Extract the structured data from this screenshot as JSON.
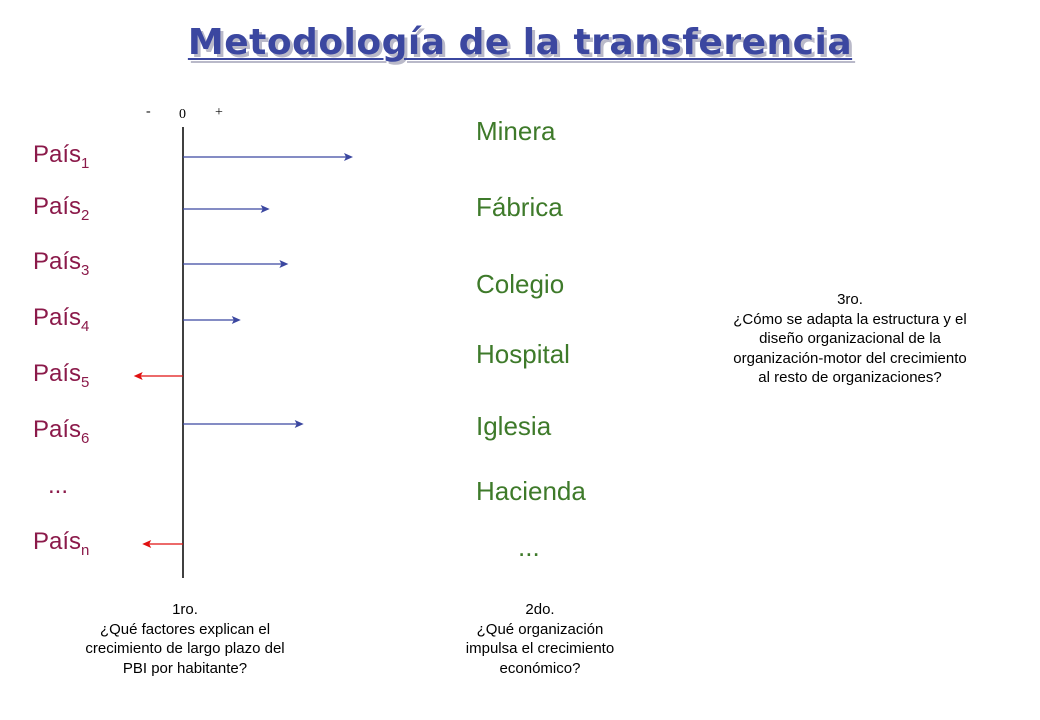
{
  "title": "Metodología de la transferencia",
  "axis": {
    "minus": "-",
    "zero": "0",
    "plus": "+"
  },
  "countries": [
    {
      "base": "País",
      "sub": "1",
      "direction": "positive",
      "magnitude": 1.0
    },
    {
      "base": "País",
      "sub": "2",
      "direction": "positive",
      "magnitude": 0.51
    },
    {
      "base": "País",
      "sub": "3",
      "direction": "positive",
      "magnitude": 0.62
    },
    {
      "base": "País",
      "sub": "4",
      "direction": "positive",
      "magnitude": 0.34
    },
    {
      "base": "País",
      "sub": "5",
      "direction": "negative",
      "magnitude": 0.29
    },
    {
      "base": "País",
      "sub": "6",
      "direction": "positive",
      "magnitude": 0.71
    },
    {
      "base": "País",
      "sub": "n",
      "direction": "negative",
      "magnitude": 0.24
    }
  ],
  "countries_ellipsis": "...",
  "organizations": [
    "Minera",
    "Fábrica",
    "Colegio",
    "Hospital",
    "Iglesia",
    "Hacienda"
  ],
  "organizations_ellipsis": "...",
  "questions": {
    "q1": [
      "1ro.",
      "¿Qué factores explican el",
      "crecimiento de largo plazo del",
      "PBI por habitante?"
    ],
    "q2": [
      "2do.",
      "¿Qué organización",
      "impulsa el crecimiento",
      "económico?"
    ],
    "q3": [
      "3ro.",
      "¿Cómo se adapta la estructura y el",
      "diseño organizacional de la",
      "organización-motor del crecimiento",
      "al resto de organizaciones?"
    ]
  },
  "colors": {
    "positive_arrow": "#3b47a0",
    "negative_arrow": "#e01010",
    "axis": "#000000"
  }
}
